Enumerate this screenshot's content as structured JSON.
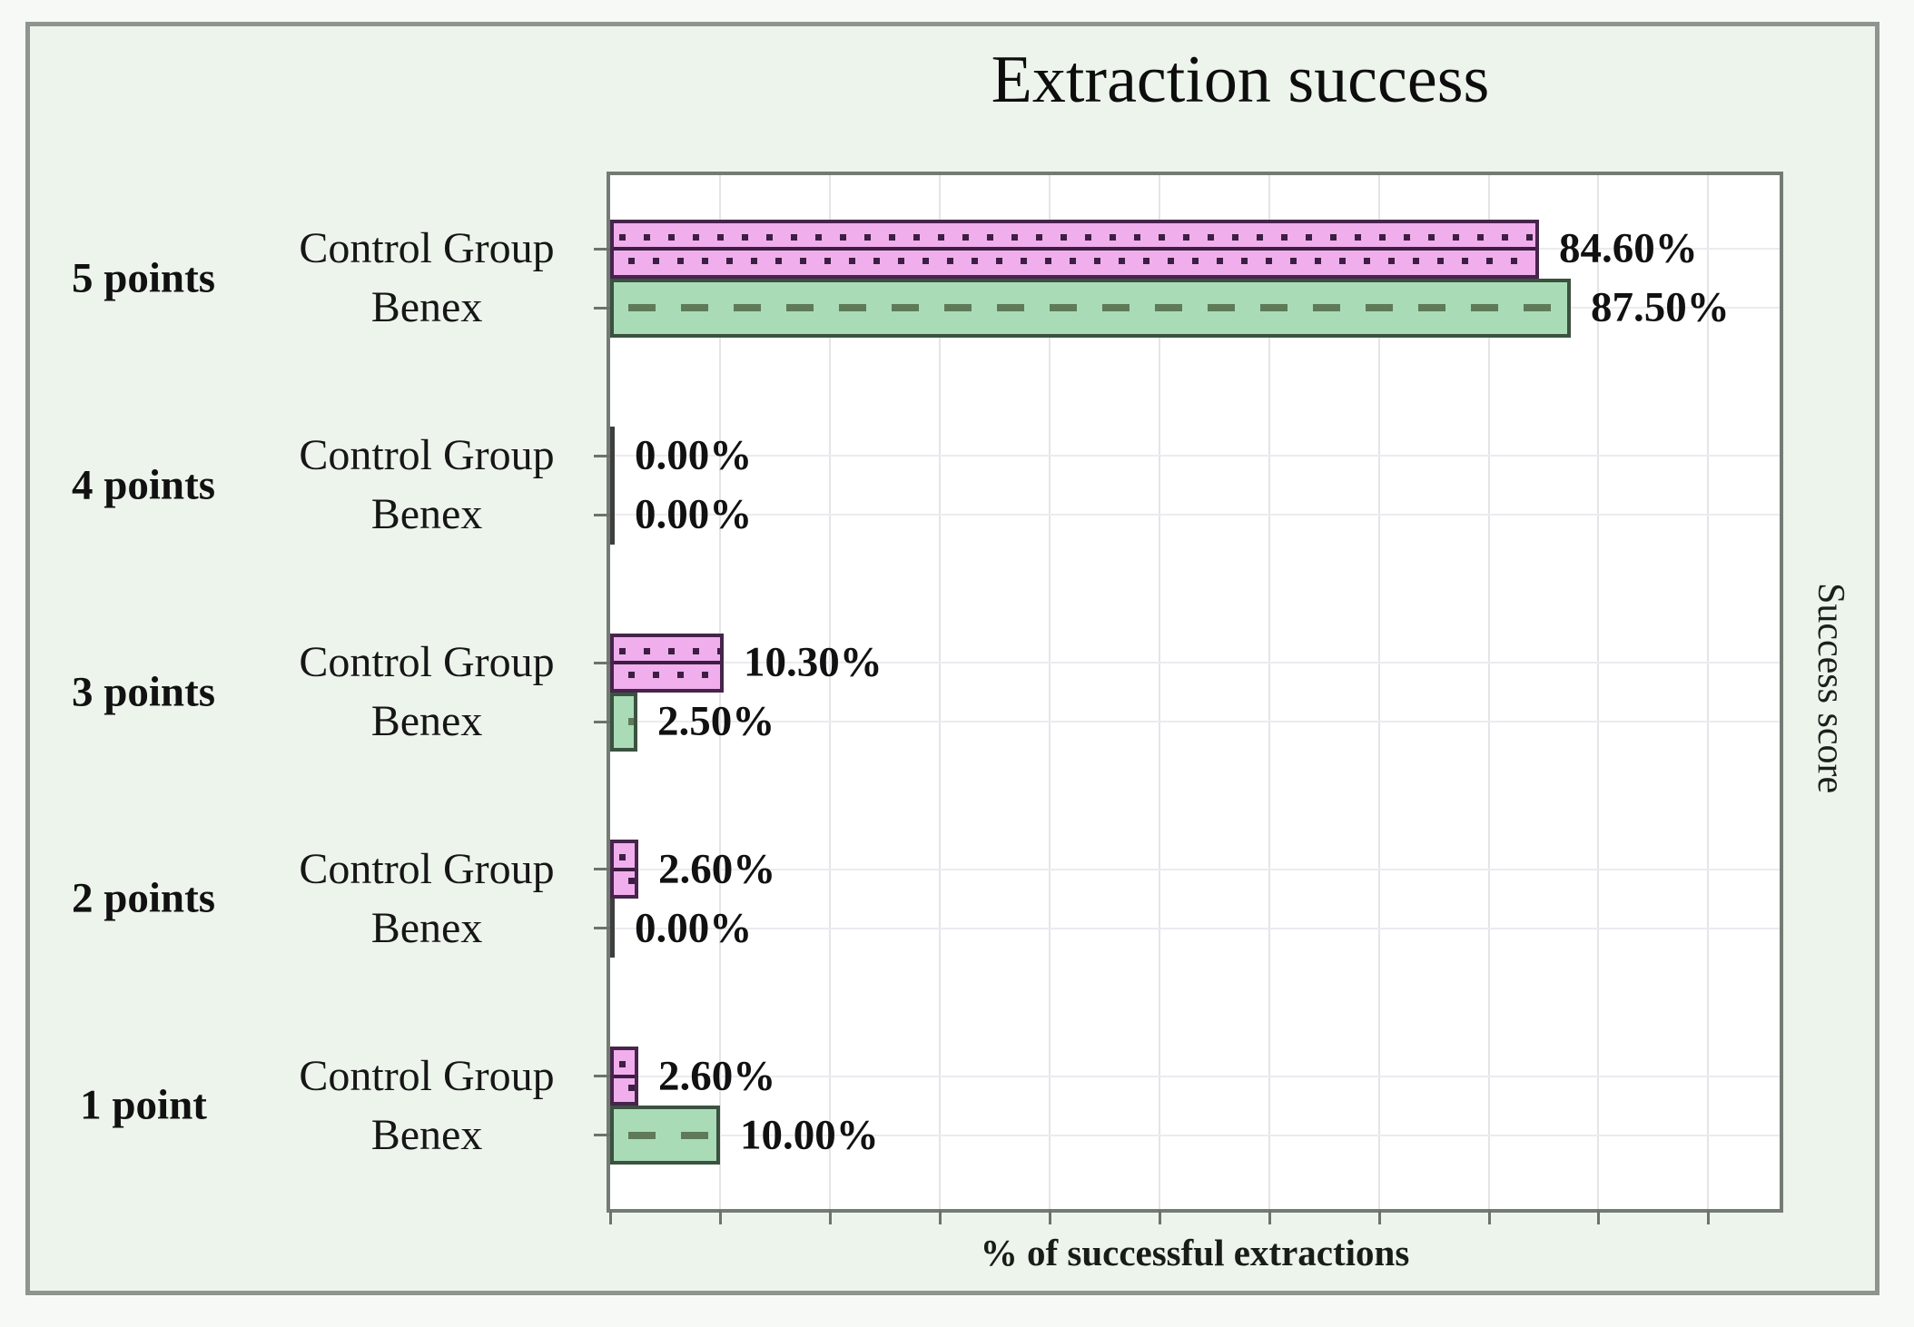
{
  "chart_data": {
    "type": "bar",
    "orientation": "horizontal",
    "title": "Extraction success",
    "xlabel": "% of successful extractions",
    "ylabel": "Success score",
    "categories": [
      "5 points",
      "4 points",
      "3 points",
      "2 points",
      "1 point"
    ],
    "series": [
      {
        "name": "Control Group",
        "values": [
          84.6,
          0.0,
          10.3,
          2.6,
          2.6
        ],
        "value_labels": [
          "84.60%",
          "0.00%",
          "10.30%",
          "2.60%",
          "2.60%"
        ],
        "fill": "#f0aeec",
        "border": "#46244c",
        "pattern_color": "#3c1e42",
        "pattern": "dotted-rows-with-center-line"
      },
      {
        "name": "Benex",
        "values": [
          87.5,
          0.0,
          2.5,
          0.0,
          10.0
        ],
        "value_labels": [
          "87.50%",
          "0.00%",
          "2.50%",
          "0.00%",
          "10.00%"
        ],
        "fill": "#a9dbb7",
        "border": "#3a523f",
        "pattern_color": "#5f7a58",
        "pattern": "dashed-center-line"
      }
    ],
    "xlim": [
      0,
      106.5
    ],
    "grid": true,
    "gridline_step_percent": 10,
    "legend_position": "none"
  },
  "colors": {
    "page_background": "#f7f9f7",
    "figure_background": "#edf4ec",
    "figure_border": "#8f948f",
    "plot_background": "#ffffff",
    "plot_border": "#747b74",
    "gridline": "#e4e4e9",
    "tick": "#6d726d",
    "text": "#151515"
  }
}
